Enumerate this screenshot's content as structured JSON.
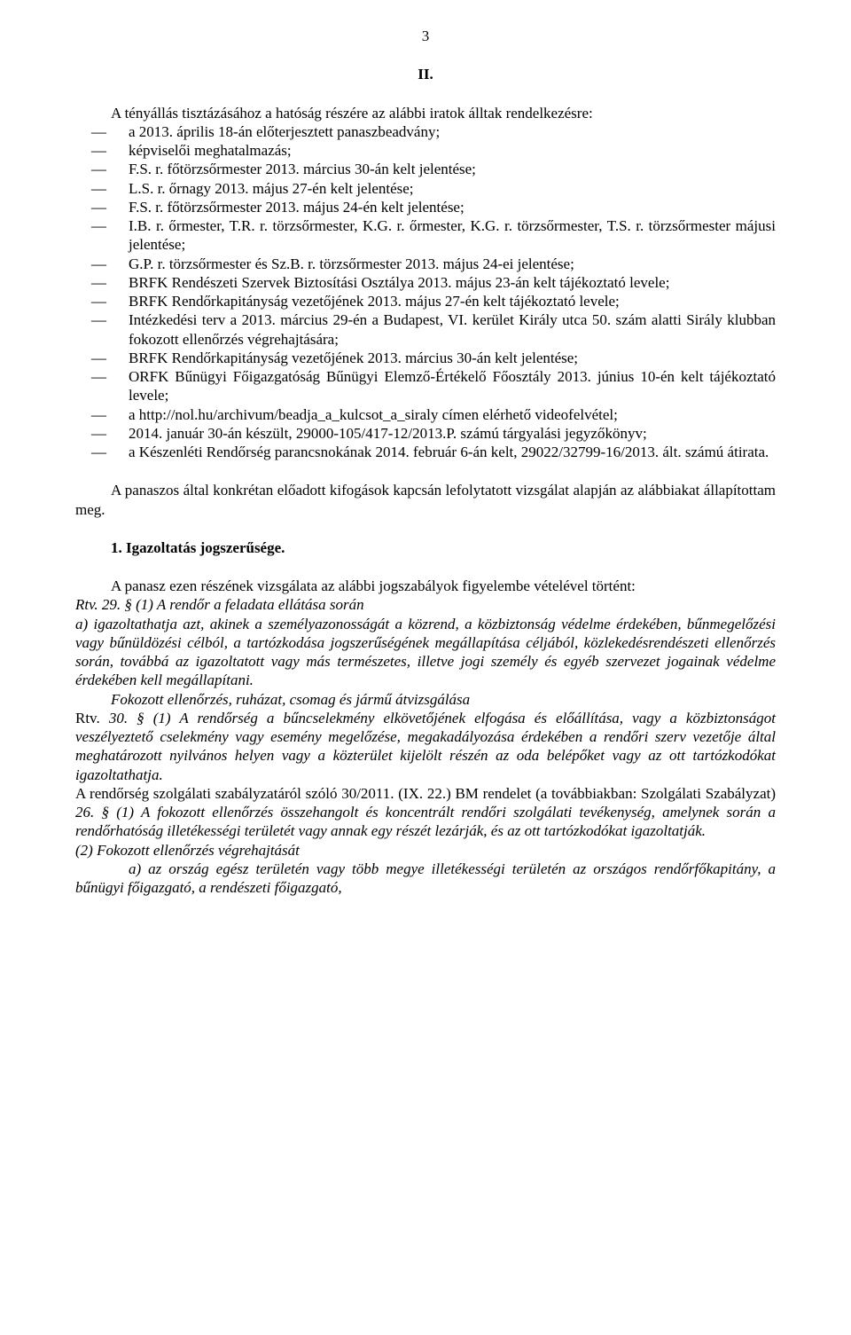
{
  "page_number": "3",
  "section_heading": "II.",
  "intro": "A tényállás tisztázásához a hatóság részére az alábbi iratok álltak rendelkezésre:",
  "list_items": [
    "a 2013. április 18-án előterjesztett panaszbeadvány;",
    "képviselői meghatalmazás;",
    "F.S. r. főtörzsőrmester 2013. március 30-án kelt jelentése;",
    "L.S. r. őrnagy 2013. május 27-én kelt jelentése;",
    "F.S. r. főtörzsőrmester 2013. május 24-én kelt jelentése;",
    "I.B. r. őrmester, T.R. r. törzsőrmester, K.G. r. őrmester, K.G. r. törzsőrmester, T.S. r. törzsőrmester májusi jelentése;",
    "G.P. r. törzsőrmester és Sz.B. r. törzsőrmester 2013. május 24-ei jelentése;",
    "BRFK Rendészeti Szervek Biztosítási Osztálya 2013. május 23-án kelt tájékoztató levele;",
    "BRFK Rendőrkapitányság vezetőjének 2013. május 27-én kelt tájékoztató levele;",
    "Intézkedési terv a 2013. március 29-én a Budapest, VI. kerület Király utca 50. szám alatti Sirály klubban fokozott ellenőrzés végrehajtására;",
    "BRFK Rendőrkapitányság vezetőjének 2013. március 30-án kelt jelentése;",
    "ORFK Bűnügyi Főigazgatóság Bűnügyi Elemző-Értékelő Főosztály 2013. június 10-én kelt tájékoztató levele;",
    "a http://nol.hu/archivum/beadja_a_kulcsot_a_siraly címen elérhető videofelvétel;",
    "2014. január 30-án készült, 29000-105/417-12/2013.P. számú tárgyalási jegyzőkönyv;",
    "a Készenléti Rendőrség parancsnokának 2014. február 6-án kelt, 29022/32799-16/2013. ált. számú átirata."
  ],
  "para_after_list": "A panaszos által konkrétan előadott kifogások kapcsán lefolytatott vizsgálat alapján az alábbiakat állapítottam meg.",
  "numbered_heading": "1.  Igazoltatás jogszerűsége.",
  "para_intro2": "A panasz ezen részének vizsgálata az alábbi jogszabályok figyelembe vételével történt:",
  "rtv29_lead": "Rtv. 29. § (1) A rendőr a feladata ellátása során",
  "rtv29_a": "a) igazoltathatja azt, akinek a személyazonosságát a közrend, a közbiztonság védelme érdekében, bűnmegelőzési vagy bűnüldözési célból, a tartózkodása jogszerűségének megállapítása céljából, közlekedésrendészeti ellenőrzés során, továbbá az igazoltatott vagy más természetes, illetve jogi személy és egyéb szervezet jogainak védelme érdekében kell megállapítani.",
  "sub_italic": "Fokozott ellenőrzés, ruházat, csomag és jármű átvizsgálása",
  "rtv30_1": "Rtv. 30. § (1) A rendőrség a bűncselekmény elkövetőjének elfogása és előállítása, vagy a közbiztonságot veszélyeztető cselekmény vagy esemény megelőzése, megakadályozása érdekében a rendőri szerv vezetője által meghatározott nyilvános helyen vagy a közterület kijelölt részén az oda belépőket vagy az ott tartózkodókat igazoltathatja.",
  "bm_para": "A rendőrség szolgálati szabályzatáról szóló 30/2011. (IX. 22.) BM rendelet (a továbbiakban: Szolgálati Szabályzat) 26. § (1) A fokozott ellenőrzés összehangolt és koncentrált rendőri szolgálati tevékenység, amelynek során a rendőrhatóság illetékességi területét vagy annak egy részét lezárják, és az ott tartózkodókat igazoltatják.",
  "sub2": "(2) Fokozott ellenőrzés végrehajtását",
  "sub2_a": "a) az ország egész területén vagy több megye illetékességi területén az országos rendőrfőkapitány, a bűnügyi főigazgató, a rendészeti főigazgató,"
}
